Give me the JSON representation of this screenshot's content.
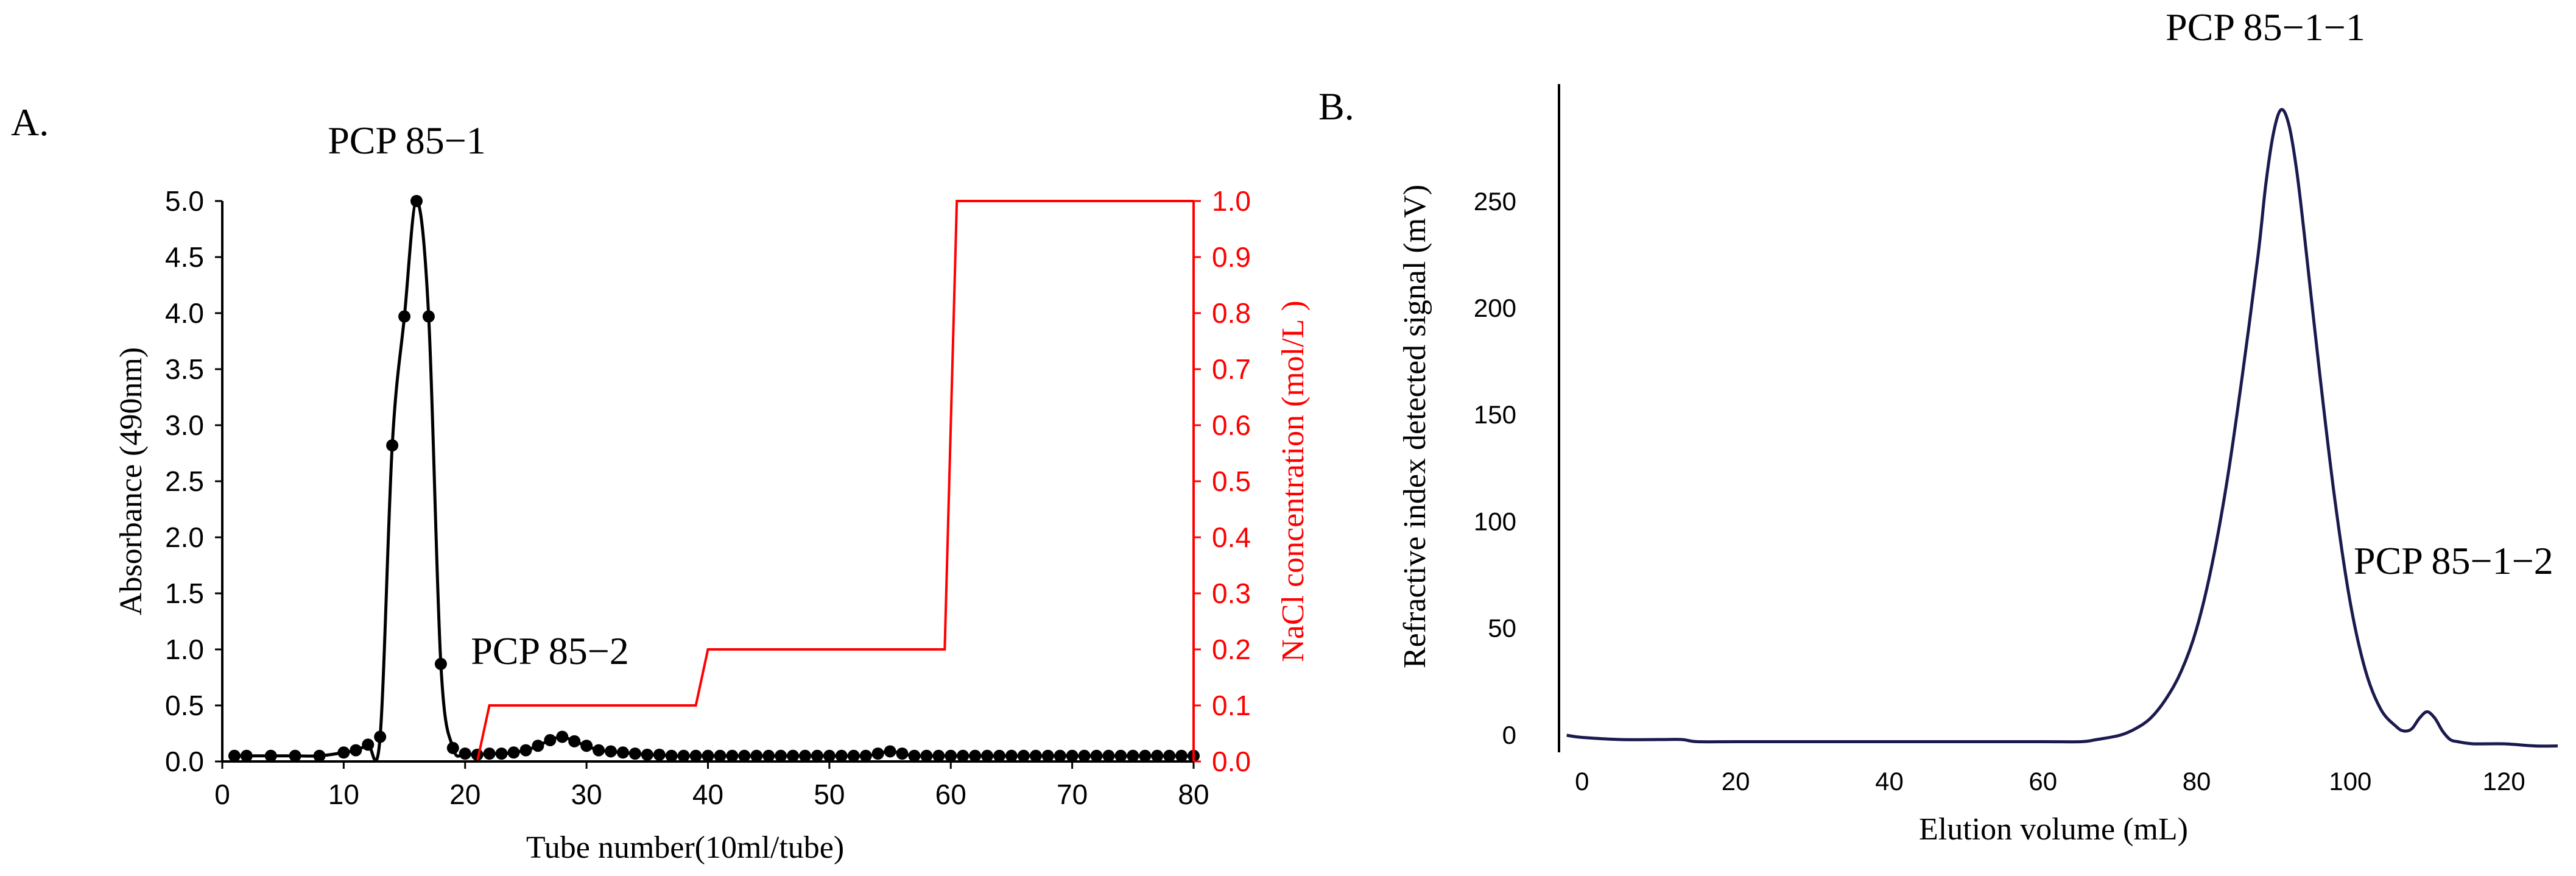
{
  "chart_data": [
    {
      "panel": "A.",
      "type": "line",
      "xlabel": "Tube number(10ml/tube)",
      "ylabel": "Absorbance (490nm)",
      "y2label": "NaCl concentration (mol/L )",
      "xlim": [
        0,
        80
      ],
      "ylim": [
        0,
        5
      ],
      "y2lim": [
        0,
        1
      ],
      "xticks": [
        "0",
        "10",
        "20",
        "30",
        "40",
        "50",
        "60",
        "70",
        "80"
      ],
      "yticks": [
        "0.0",
        "0.5",
        "1.0",
        "1.5",
        "2.0",
        "2.5",
        "3.0",
        "3.5",
        "4.0",
        "4.5",
        "5.0"
      ],
      "y2ticks": [
        "0.0",
        "0.1",
        "0.2",
        "0.3",
        "0.4",
        "0.5",
        "0.6",
        "0.7",
        "0.8",
        "0.9",
        "1.0"
      ],
      "series": [
        {
          "name": "Absorbance",
          "color": "#000000",
          "axis": "left",
          "points": [
            [
              1,
              0.05
            ],
            [
              2,
              0.05
            ],
            [
              4,
              0.05
            ],
            [
              6,
              0.05
            ],
            [
              8,
              0.05
            ],
            [
              10,
              0.08
            ],
            [
              11,
              0.1
            ],
            [
              12,
              0.15
            ],
            [
              13,
              0.22
            ],
            [
              14,
              2.82
            ],
            [
              15,
              3.97
            ],
            [
              16,
              5.0
            ],
            [
              17,
              3.97
            ],
            [
              18,
              0.87
            ],
            [
              19,
              0.12
            ],
            [
              20,
              0.07
            ],
            [
              21,
              0.06
            ],
            [
              22,
              0.07
            ],
            [
              23,
              0.07
            ],
            [
              24,
              0.08
            ],
            [
              25,
              0.1
            ],
            [
              26,
              0.14
            ],
            [
              27,
              0.19
            ],
            [
              28,
              0.22
            ],
            [
              29,
              0.18
            ],
            [
              30,
              0.14
            ],
            [
              31,
              0.1
            ],
            [
              32,
              0.09
            ],
            [
              33,
              0.08
            ],
            [
              34,
              0.07
            ],
            [
              35,
              0.06
            ],
            [
              36,
              0.06
            ],
            [
              37,
              0.05
            ],
            [
              38,
              0.05
            ],
            [
              39,
              0.05
            ],
            [
              40,
              0.05
            ],
            [
              41,
              0.05
            ],
            [
              42,
              0.05
            ],
            [
              43,
              0.05
            ],
            [
              44,
              0.05
            ],
            [
              45,
              0.05
            ],
            [
              46,
              0.05
            ],
            [
              47,
              0.05
            ],
            [
              48,
              0.05
            ],
            [
              49,
              0.05
            ],
            [
              50,
              0.05
            ],
            [
              51,
              0.05
            ],
            [
              52,
              0.05
            ],
            [
              53,
              0.05
            ],
            [
              54,
              0.07
            ],
            [
              55,
              0.09
            ],
            [
              56,
              0.07
            ],
            [
              57,
              0.05
            ],
            [
              58,
              0.05
            ],
            [
              59,
              0.05
            ],
            [
              60,
              0.05
            ],
            [
              61,
              0.05
            ],
            [
              62,
              0.05
            ],
            [
              63,
              0.05
            ],
            [
              64,
              0.05
            ],
            [
              65,
              0.05
            ],
            [
              66,
              0.05
            ],
            [
              67,
              0.05
            ],
            [
              68,
              0.05
            ],
            [
              69,
              0.05
            ],
            [
              70,
              0.05
            ],
            [
              71,
              0.05
            ],
            [
              72,
              0.05
            ],
            [
              73,
              0.05
            ],
            [
              74,
              0.05
            ],
            [
              75,
              0.05
            ],
            [
              76,
              0.05
            ],
            [
              77,
              0.05
            ],
            [
              78,
              0.05
            ],
            [
              79,
              0.05
            ],
            [
              80,
              0.05
            ]
          ]
        },
        {
          "name": "NaCl concentration",
          "color": "#ff0000",
          "axis": "right",
          "points": [
            [
              0,
              0
            ],
            [
              21,
              0
            ],
            [
              22,
              0.1
            ],
            [
              39,
              0.1
            ],
            [
              40,
              0.2
            ],
            [
              59.5,
              0.2
            ],
            [
              60.5,
              1.0
            ],
            [
              80,
              1.0
            ]
          ]
        }
      ],
      "annotations": [
        {
          "text": "PCP 85−1",
          "x": 16,
          "y": 5.0,
          "where": "above"
        },
        {
          "text": "PCP 85−2",
          "x": 27,
          "y": 0.22,
          "where": "above"
        }
      ]
    },
    {
      "panel": "B.",
      "type": "line",
      "xlabel": "Elution volume (mL)",
      "ylabel": "Refractive index detected signal (mV)",
      "xlim": [
        -3,
        127
      ],
      "ylim": [
        -8,
        305
      ],
      "xticks": [
        "0",
        "20",
        "40",
        "60",
        "80",
        "100",
        "120"
      ],
      "yticks": [
        "0",
        "50",
        "100",
        "150",
        "200",
        "250"
      ],
      "series": [
        {
          "name": "RI signal",
          "color": "#1a1a4e",
          "points": [
            [
              -2,
              0
            ],
            [
              0,
              -1
            ],
            [
              5,
              -2
            ],
            [
              10,
              -2
            ],
            [
              13,
              -2
            ],
            [
              15,
              -3
            ],
            [
              20,
              -3
            ],
            [
              30,
              -3
            ],
            [
              40,
              -3
            ],
            [
              50,
              -3
            ],
            [
              60,
              -3
            ],
            [
              65,
              -3
            ],
            [
              67,
              -2
            ],
            [
              70,
              0
            ],
            [
              72,
              3
            ],
            [
              74,
              8
            ],
            [
              76,
              17
            ],
            [
              78,
              30
            ],
            [
              80,
              50
            ],
            [
              82,
              80
            ],
            [
              84,
              120
            ],
            [
              86,
              170
            ],
            [
              88,
              225
            ],
            [
              89,
              258
            ],
            [
              90,
              282
            ],
            [
              91,
              293
            ],
            [
              92,
              286
            ],
            [
              93,
              265
            ],
            [
              94,
              235
            ],
            [
              96,
              170
            ],
            [
              98,
              110
            ],
            [
              100,
              62
            ],
            [
              102,
              30
            ],
            [
              104,
              12
            ],
            [
              106,
              4
            ],
            [
              107,
              2
            ],
            [
              108,
              3
            ],
            [
              109,
              8
            ],
            [
              110,
              11
            ],
            [
              111,
              8
            ],
            [
              112,
              2
            ],
            [
              113,
              -2
            ],
            [
              114,
              -3
            ],
            [
              116,
              -4
            ],
            [
              120,
              -4
            ],
            [
              124,
              -5
            ],
            [
              127,
              -5
            ]
          ]
        }
      ],
      "annotations": [
        {
          "text": "PCP 85−1−1",
          "x": 91,
          "y": 293,
          "where": "above"
        },
        {
          "text": "PCP 85−1−2",
          "x": 110,
          "y": 11,
          "where": "upper-right"
        }
      ]
    }
  ]
}
